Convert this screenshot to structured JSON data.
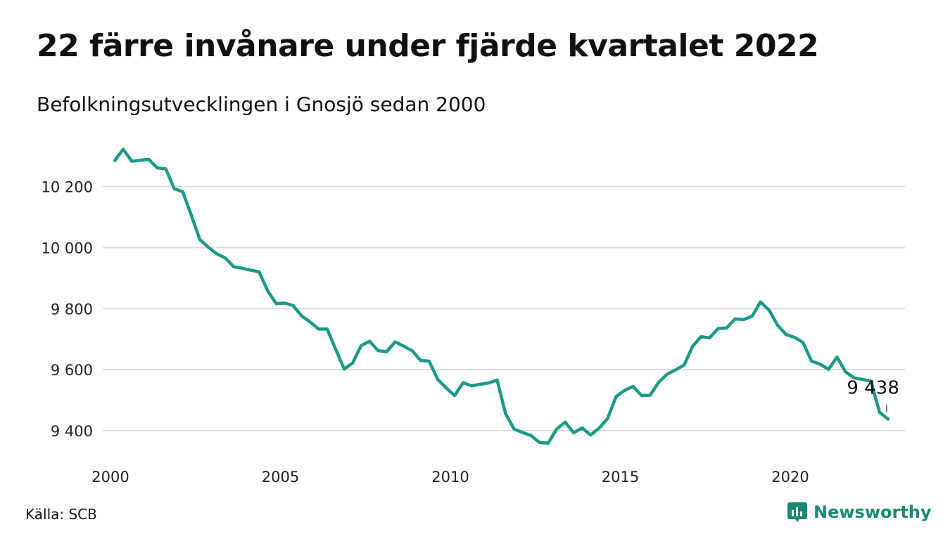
{
  "header": {
    "title": "22 färre invånare under fjärde kvartalet 2022",
    "subtitle": "Befolkningsutvecklingen i Gnosjö sedan 2000"
  },
  "footer": {
    "source": "Källa: SCB",
    "brand": "Newsworthy",
    "brand_icon": "newsworthy-logo-icon"
  },
  "colors": {
    "line": "#1a9a88",
    "grid": "#dddddd",
    "brand": "#1a8a73"
  },
  "chart_data": {
    "type": "line",
    "title": "22 färre invånare under fjärde kvartalet 2022",
    "subtitle": "Befolkningsutvecklingen i Gnosjö sedan 2000",
    "xlabel": "",
    "ylabel": "",
    "x_ticks": [
      "2000",
      "2005",
      "2010",
      "2015",
      "2020"
    ],
    "y_ticks": [
      {
        "value": 9400,
        "label": "9 400"
      },
      {
        "value": 9600,
        "label": "9 600"
      },
      {
        "value": 9800,
        "label": "9 800"
      },
      {
        "value": 10000,
        "label": "10 000"
      },
      {
        "value": 10200,
        "label": "10 200"
      }
    ],
    "xlim": [
      2000,
      2023.5
    ],
    "ylim": [
      9340,
      10340
    ],
    "grid": true,
    "annotation": {
      "text": "9 438",
      "x": "2022 Q4"
    },
    "series": [
      {
        "x": [
          "2000 Q1",
          "2000 Q2",
          "2000 Q3",
          "2000 Q4",
          "2001 Q1",
          "2001 Q2",
          "2001 Q3",
          "2001 Q4",
          "2002 Q1",
          "2002 Q2",
          "2002 Q3",
          "2002 Q4",
          "2003 Q1",
          "2003 Q2",
          "2003 Q3",
          "2003 Q4",
          "2004 Q1",
          "2004 Q2",
          "2004 Q3",
          "2004 Q4",
          "2005 Q1",
          "2005 Q2",
          "2005 Q3",
          "2005 Q4",
          "2006 Q1",
          "2006 Q2",
          "2006 Q3",
          "2006 Q4",
          "2007 Q1",
          "2007 Q2",
          "2007 Q3",
          "2007 Q4",
          "2008 Q1",
          "2008 Q2",
          "2008 Q3",
          "2008 Q4",
          "2009 Q1",
          "2009 Q2",
          "2009 Q3",
          "2009 Q4",
          "2010 Q1",
          "2010 Q2",
          "2010 Q3",
          "2010 Q4",
          "2011 Q1",
          "2011 Q2",
          "2011 Q3",
          "2011 Q4",
          "2012 Q1",
          "2012 Q2",
          "2012 Q3",
          "2012 Q4",
          "2013 Q1",
          "2013 Q2",
          "2013 Q3",
          "2013 Q4",
          "2014 Q1",
          "2014 Q2",
          "2014 Q3",
          "2014 Q4",
          "2015 Q1",
          "2015 Q2",
          "2015 Q3",
          "2015 Q4",
          "2016 Q1",
          "2016 Q2",
          "2016 Q3",
          "2016 Q4",
          "2017 Q1",
          "2017 Q2",
          "2017 Q3",
          "2017 Q4",
          "2018 Q1",
          "2018 Q2",
          "2018 Q3",
          "2018 Q4",
          "2019 Q1",
          "2019 Q2",
          "2019 Q3",
          "2019 Q4",
          "2020 Q1",
          "2020 Q2",
          "2020 Q3",
          "2020 Q4",
          "2021 Q1",
          "2021 Q2",
          "2021 Q3",
          "2021 Q4",
          "2022 Q1",
          "2022 Q2",
          "2022 Q3",
          "2022 Q4"
        ],
        "values": [
          10285,
          10322,
          10283,
          10286,
          10289,
          10261,
          10258,
          10193,
          10183,
          10107,
          10027,
          10001,
          9980,
          9966,
          9937,
          9932,
          9926,
          9920,
          9858,
          9816,
          9818,
          9810,
          9776,
          9756,
          9733,
          9733,
          9667,
          9602,
          9622,
          9679,
          9693,
          9662,
          9659,
          9691,
          9677,
          9662,
          9630,
          9628,
          9568,
          9540,
          9515,
          9557,
          9547,
          9552,
          9556,
          9566,
          9455,
          9405,
          9394,
          9384,
          9361,
          9359,
          9405,
          9428,
          9393,
          9409,
          9386,
          9408,
          9440,
          9512,
          9532,
          9545,
          9515,
          9516,
          9558,
          9585,
          9599,
          9615,
          9676,
          9708,
          9704,
          9735,
          9736,
          9766,
          9764,
          9775,
          9822,
          9795,
          9746,
          9715,
          9706,
          9689,
          9628,
          9618,
          9601,
          9641,
          9593,
          9573,
          9568,
          9562,
          9460,
          9438
        ]
      }
    ]
  }
}
